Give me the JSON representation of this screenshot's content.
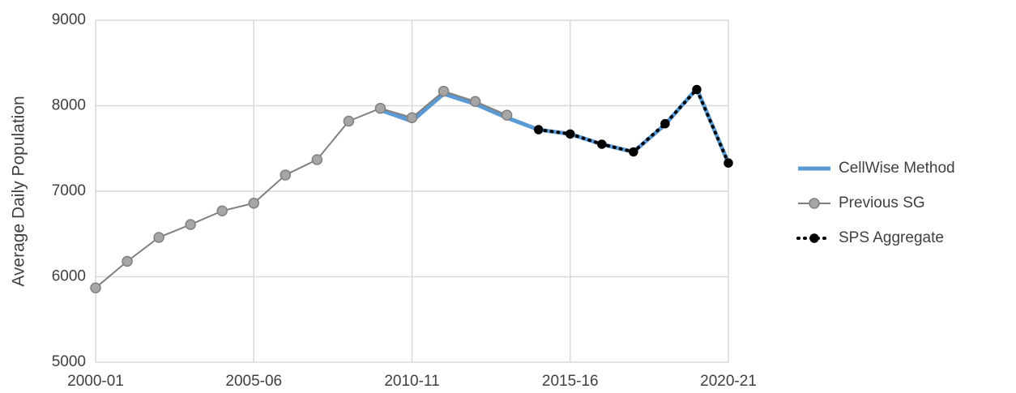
{
  "chart_data": {
    "type": "line",
    "y_label": "Average Daily Population",
    "categories": [
      "2000-01",
      null,
      null,
      null,
      null,
      "2005-06",
      null,
      null,
      null,
      null,
      "2010-11",
      null,
      null,
      null,
      null,
      "2015-16",
      null,
      null,
      null,
      null,
      "2020-21"
    ],
    "series": [
      {
        "name": "CellWise Method",
        "color": "#5b9bd5",
        "style": "solid",
        "marker": false,
        "values": [
          null,
          null,
          null,
          null,
          null,
          null,
          null,
          null,
          null,
          7950,
          7820,
          8140,
          8020,
          7860,
          7720,
          7670,
          7550,
          7460,
          7780,
          8200,
          7330
        ]
      },
      {
        "name": "Previous SG",
        "color": "#808080",
        "style": "solid",
        "marker": true,
        "marker_color": "#a6a6a6",
        "values": [
          5870,
          6180,
          6460,
          6610,
          6770,
          6860,
          7190,
          7370,
          7820,
          7970,
          7860,
          8170,
          8050,
          7890,
          null,
          null,
          null,
          null,
          null,
          null,
          null
        ]
      },
      {
        "name": "SPS Aggregate",
        "color": "#000000",
        "style": "dotted",
        "marker": true,
        "marker_color": "#000000",
        "values": [
          null,
          null,
          null,
          null,
          null,
          null,
          null,
          null,
          null,
          null,
          null,
          null,
          null,
          null,
          7720,
          7670,
          7550,
          7460,
          7790,
          8190,
          7330
        ]
      }
    ],
    "ylim": [
      5000,
      9000
    ],
    "yticks": [
      5000,
      6000,
      7000,
      8000,
      9000
    ],
    "grid": true,
    "legend": "right"
  }
}
